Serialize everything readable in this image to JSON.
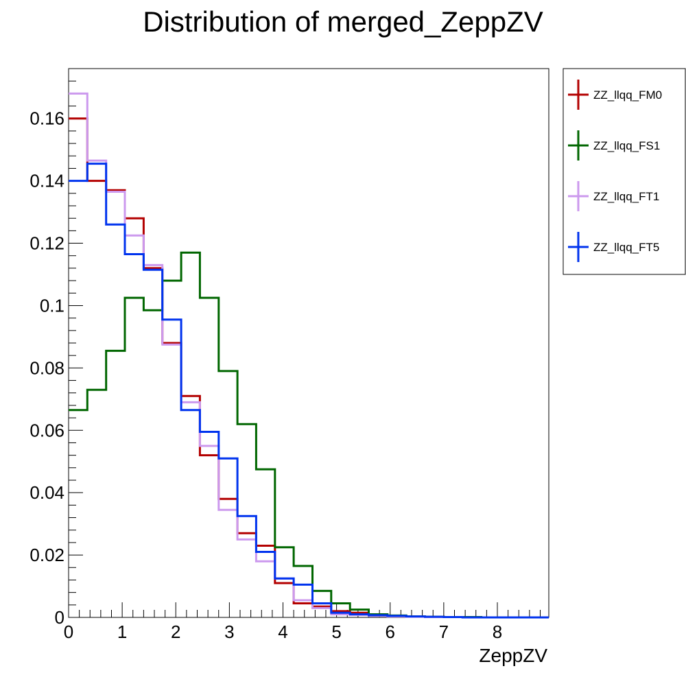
{
  "chart_data": {
    "type": "line",
    "title": "Distribution of merged_ZeppZV",
    "xlabel": "ZeppZV",
    "ylabel": "",
    "xlim": [
      0,
      8.96
    ],
    "ylim": [
      0,
      0.176
    ],
    "bin_edges": [
      0,
      0.35,
      0.7,
      1.05,
      1.4,
      1.75,
      2.1,
      2.45,
      2.8,
      3.15,
      3.5,
      3.85,
      4.2,
      4.55,
      4.9,
      5.25,
      5.6,
      5.95,
      6.3,
      6.65,
      7.0,
      7.35,
      7.7,
      8.05,
      8.4,
      8.75,
      8.96
    ],
    "x_ticks": [
      0,
      1,
      2,
      3,
      4,
      5,
      6,
      7,
      8
    ],
    "x_tick_labels": [
      "0",
      "1",
      "2",
      "3",
      "4",
      "5",
      "6",
      "7",
      "8"
    ],
    "y_ticks": [
      0,
      0.02,
      0.04,
      0.06,
      0.08,
      0.1,
      0.12,
      0.14,
      0.16
    ],
    "y_tick_labels": [
      "0",
      "0.02",
      "0.04",
      "0.06",
      "0.08",
      "0.1",
      "0.12",
      "0.14",
      "0.16"
    ],
    "legend_position": "right",
    "series": [
      {
        "name": "ZZ_llqq_FM0",
        "color": "#b30000",
        "values": [
          0.16,
          0.14,
          0.137,
          0.128,
          0.112,
          0.088,
          0.071,
          0.052,
          0.038,
          0.027,
          0.023,
          0.011,
          0.0045,
          0.0035,
          0.002,
          0.0015,
          0.0008,
          0.0005,
          0.0003,
          0.0002,
          0.0001,
          0.0001,
          0.0,
          0.0,
          0.0,
          0.0
        ]
      },
      {
        "name": "ZZ_llqq_FS1",
        "color": "#006600",
        "values": [
          0.0665,
          0.073,
          0.0855,
          0.1025,
          0.0985,
          0.108,
          0.117,
          0.1025,
          0.079,
          0.062,
          0.0475,
          0.0225,
          0.0165,
          0.0085,
          0.0045,
          0.0025,
          0.001,
          0.0006,
          0.0003,
          0.0002,
          0.0001,
          0.0001,
          0.0,
          0.0,
          0.0,
          0.0
        ]
      },
      {
        "name": "ZZ_llqq_FT1",
        "color": "#cc99ee",
        "values": [
          0.168,
          0.1465,
          0.1365,
          0.1225,
          0.113,
          0.0875,
          0.069,
          0.055,
          0.0345,
          0.025,
          0.018,
          0.0125,
          0.0055,
          0.003,
          0.001,
          0.0008,
          0.0005,
          0.0003,
          0.0002,
          0.0001,
          0.0001,
          0.0,
          0.0,
          0.0,
          0.0,
          0.0
        ]
      },
      {
        "name": "ZZ_llqq_FT5",
        "color": "#0033ee",
        "values": [
          0.14,
          0.1455,
          0.126,
          0.1165,
          0.1115,
          0.0955,
          0.0665,
          0.0595,
          0.051,
          0.0325,
          0.021,
          0.0125,
          0.0105,
          0.0045,
          0.0015,
          0.001,
          0.0007,
          0.0005,
          0.0003,
          0.0002,
          0.0001,
          0.0,
          0.0,
          0.0,
          0.0,
          0.0
        ]
      }
    ]
  }
}
